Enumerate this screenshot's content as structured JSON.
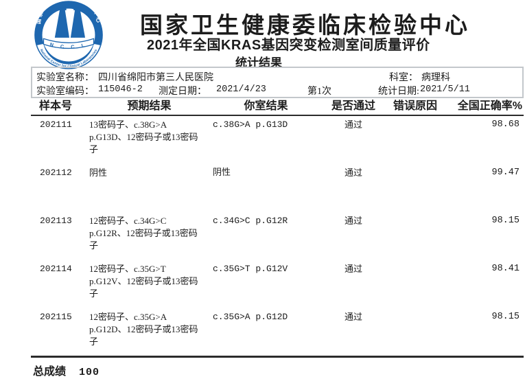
{
  "logo": {
    "cn_arc": "国家卫生健康委临床检验中心",
    "en_arc": "National Center for Clinical Laboratories",
    "nccl": "N C C L",
    "blue": "#1e67af"
  },
  "header": {
    "org_title": "国家卫生健康委临床检验中心",
    "report_title": "2021年全国KRAS基因突变检测室间质量评价",
    "report_subtitle": "统计结果"
  },
  "info": {
    "lab_name_label": "实验室名称：",
    "lab_name": "四川省绵阳市第三人民医院",
    "department_label": "科室：",
    "department": "病理科",
    "lab_code_label": "实验室编码：",
    "lab_code": "115046-2",
    "test_date_label": "测定日期：",
    "test_date": "2021/4/23",
    "attempt": "第1次",
    "stat_date_label": "统计日期:",
    "stat_date": "2021/5/11"
  },
  "table": {
    "columns": [
      "样本号",
      "预期结果",
      "你室结果",
      "是否通过",
      "错误原因",
      "全国正确率%"
    ],
    "rows": [
      {
        "sample": "202111",
        "expected": "13密码子、c.38G>A p.G13D、12密码子或13密码子",
        "expected_lines": [
          "13密码子、c.38G>A",
          "p.G13D、12密码子或13密码",
          "子"
        ],
        "result": "c.38G>A p.G13D",
        "pass": "通过",
        "error": "",
        "rate": "98.68"
      },
      {
        "sample": "202112",
        "expected": "阴性",
        "expected_lines": [
          "阴性"
        ],
        "result": "阴性",
        "pass": "通过",
        "error": "",
        "rate": "99.47"
      },
      {
        "sample": "202113",
        "expected": "12密码子、c.34G>C p.G12R、12密码子或13密码子",
        "expected_lines": [
          "12密码子、c.34G>C",
          "p.G12R、12密码子或13密码",
          "子"
        ],
        "result": "c.34G>C p.G12R",
        "pass": "通过",
        "error": "",
        "rate": "98.15"
      },
      {
        "sample": "202114",
        "expected": "12密码子、c.35G>T p.G12V、12密码子或13密码子",
        "expected_lines": [
          "12密码子、c.35G>T",
          "p.G12V、12密码子或13密码",
          "子"
        ],
        "result": "c.35G>T p.G12V",
        "pass": "通过",
        "error": "",
        "rate": "98.41"
      },
      {
        "sample": "202115",
        "expected": "12密码子、c.35G>A p.G12D、12密码子或13密码子",
        "expected_lines": [
          "12密码子、c.35G>A",
          "p.G12D、12密码子或13密码",
          "子"
        ],
        "result": "c.35G>A p.G12D",
        "pass": "通过",
        "error": "",
        "rate": "98.15"
      }
    ]
  },
  "footer": {
    "total_label": "总成绩",
    "total_value": "100"
  }
}
